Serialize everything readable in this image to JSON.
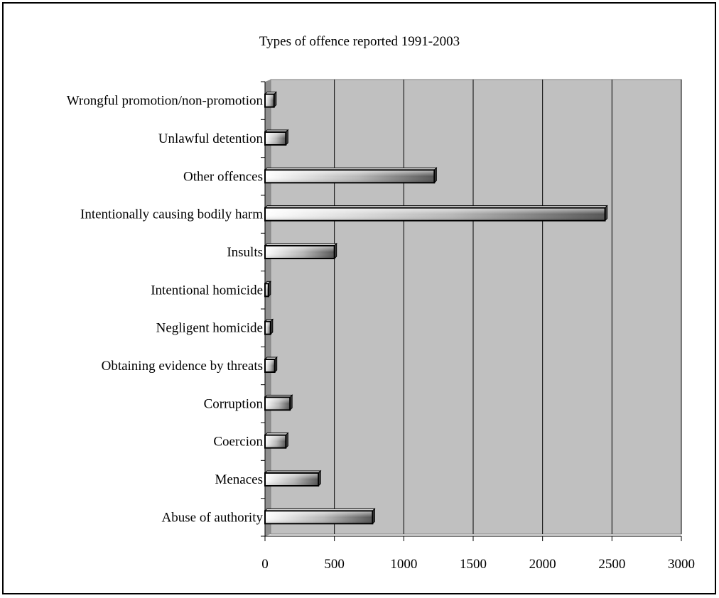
{
  "chart_data": {
    "type": "bar",
    "orientation": "horizontal",
    "title": "Types of offence reported 1991-2003",
    "xlabel": "",
    "ylabel": "",
    "categories": [
      "Abuse of authority",
      "Menaces",
      "Coercion",
      "Corruption",
      "Obtaining evidence by threats",
      "Negligent homicide",
      "Intentional homicide",
      "Insults",
      "Intentionally causing bodily harm",
      "Other offences",
      "Unlawful detention",
      "Wrongful promotion/non-promotion"
    ],
    "values": [
      775,
      385,
      150,
      180,
      70,
      40,
      25,
      500,
      2450,
      1220,
      150,
      65
    ],
    "xlim": [
      0,
      3000
    ],
    "xticks": [
      "0",
      "500",
      "1000",
      "1500",
      "2000",
      "2500",
      "3000"
    ],
    "grid": true,
    "legend": "none",
    "colors": {
      "plot_background": "#c0c0c0",
      "bar_gradient_start": "#ffffff",
      "bar_gradient_end": "#555555",
      "bar_outline": "#000000",
      "gridline": "#000000"
    }
  }
}
